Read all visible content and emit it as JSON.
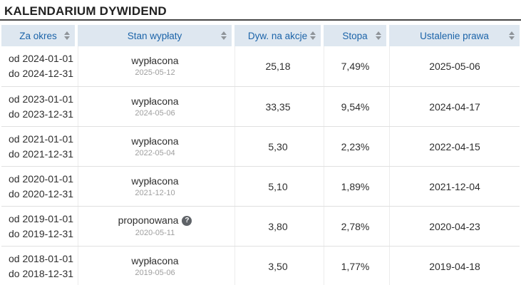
{
  "title": "KALENDARIUM DYWIDEND",
  "icons": {
    "sort": "sort-arrows",
    "help": "?"
  },
  "colors": {
    "header_bg": "#dee7f0",
    "header_text": "#1c64a9",
    "title_rule": "#454545",
    "body_text": "#2e2e2e",
    "sub_date_text": "#9e9e9e",
    "help_icon_bg": "#5f6368"
  },
  "table": {
    "columns": [
      {
        "label": "Za okres"
      },
      {
        "label": "Stan wypłaty"
      },
      {
        "label": "Dyw. na akcje"
      },
      {
        "label": "Stopa"
      },
      {
        "label": "Ustalenie prawa"
      }
    ],
    "rows": [
      {
        "period_from": "od 2024-01-01",
        "period_to": "do 2024-12-31",
        "status": "wypłacona",
        "status_date": "2025-05-12",
        "dividend": "25,18",
        "yield": "7,49%",
        "rights_date": "2025-05-06",
        "has_help": false
      },
      {
        "period_from": "od 2023-01-01",
        "period_to": "do 2023-12-31",
        "status": "wypłacona",
        "status_date": "2024-05-06",
        "dividend": "33,35",
        "yield": "9,54%",
        "rights_date": "2024-04-17",
        "has_help": false
      },
      {
        "period_from": "od 2021-01-01",
        "period_to": "do 2021-12-31",
        "status": "wypłacona",
        "status_date": "2022-05-04",
        "dividend": "5,30",
        "yield": "2,23%",
        "rights_date": "2022-04-15",
        "has_help": false
      },
      {
        "period_from": "od 2020-01-01",
        "period_to": "do 2020-12-31",
        "status": "wypłacona",
        "status_date": "2021-12-10",
        "dividend": "5,10",
        "yield": "1,89%",
        "rights_date": "2021-12-04",
        "has_help": false
      },
      {
        "period_from": "od 2019-01-01",
        "period_to": "do 2019-12-31",
        "status": "proponowana",
        "status_date": "2020-05-11",
        "dividend": "3,80",
        "yield": "2,78%",
        "rights_date": "2020-04-23",
        "has_help": true
      },
      {
        "period_from": "od 2018-01-01",
        "period_to": "do 2018-12-31",
        "status": "wypłacona",
        "status_date": "2019-05-06",
        "dividend": "3,50",
        "yield": "1,77%",
        "rights_date": "2019-04-18",
        "has_help": false
      }
    ]
  }
}
